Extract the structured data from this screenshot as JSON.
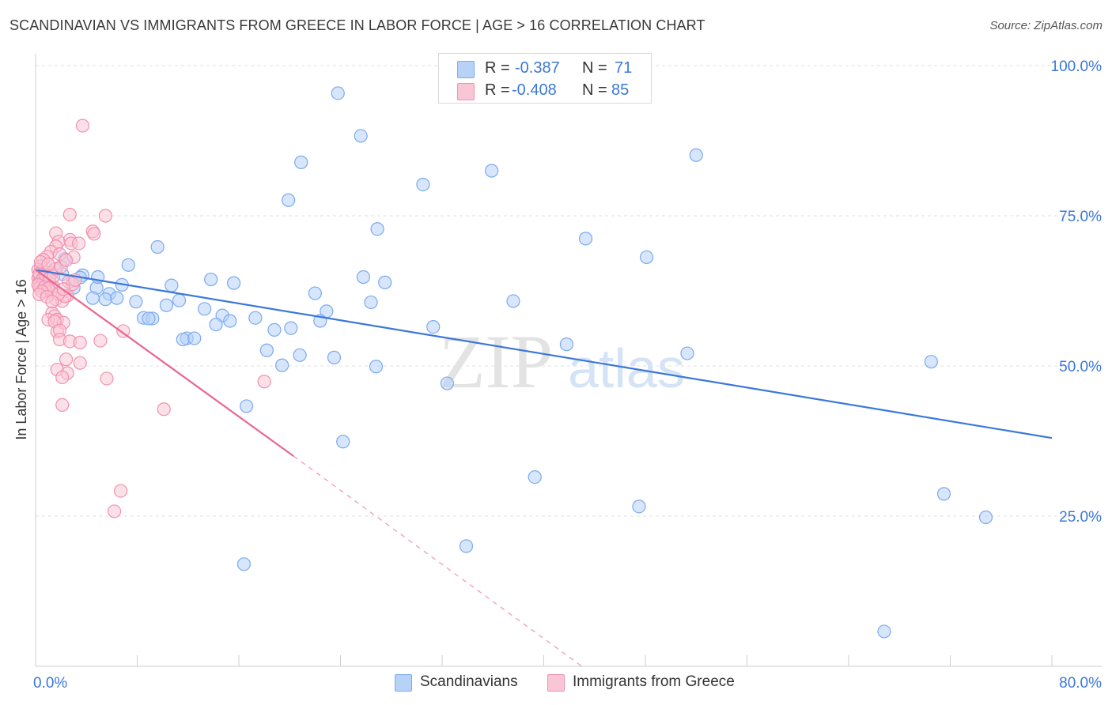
{
  "title": "SCANDINAVIAN VS IMMIGRANTS FROM GREECE IN LABOR FORCE | AGE > 16 CORRELATION CHART",
  "source": "Source: ZipAtlas.com",
  "watermark": {
    "zip": "ZIP",
    "atlas": "atlas"
  },
  "legend_top": {
    "rows": [
      {
        "r_label": "R =",
        "r_value": "-0.387",
        "n_label": "N =",
        "n_value": "71",
        "color": "#7baaf0",
        "fill": "#b7d2f7"
      },
      {
        "r_label": "R =",
        "r_value": "-0.408",
        "n_label": "N =",
        "n_value": "85",
        "color": "#f191b0",
        "fill": "#f9c6d6"
      }
    ]
  },
  "legend_bottom": [
    {
      "label": "Scandinavians",
      "fill": "#b7d2f7",
      "stroke": "#7baaf0"
    },
    {
      "label": "Immigrants from Greece",
      "fill": "#f9c6d6",
      "stroke": "#f191b0"
    }
  ],
  "chart_data": {
    "type": "scatter",
    "title": "SCANDINAVIAN VS IMMIGRANTS FROM GREECE IN LABOR FORCE | AGE > 16 CORRELATION CHART",
    "xlabel": "",
    "ylabel": "In Labor Force | Age > 16",
    "xlim": [
      0,
      80
    ],
    "ylim": [
      0,
      103
    ],
    "x_tick_labels": [
      "0.0%",
      "80.0%"
    ],
    "y_ticks": [
      25,
      50,
      75,
      100
    ],
    "y_tick_labels": [
      "25.0%",
      "50.0%",
      "75.0%",
      "100.0%"
    ],
    "grid": true,
    "legend_position": "top-center",
    "series": [
      {
        "name": "Scandinavians",
        "color": "#3b78d8",
        "fill": "#b7d2f7",
        "stroke": "#7baaf0",
        "trend": {
          "x": [
            0,
            80
          ],
          "y": [
            66.0,
            38.0
          ],
          "dashed_to": null
        },
        "points": [
          [
            23.8,
            95.4
          ],
          [
            25.6,
            88.3
          ],
          [
            52.0,
            85.1
          ],
          [
            20.9,
            83.9
          ],
          [
            30.5,
            80.2
          ],
          [
            35.9,
            82.5
          ],
          [
            19.9,
            77.6
          ],
          [
            26.9,
            72.8
          ],
          [
            43.3,
            71.2
          ],
          [
            48.1,
            68.1
          ],
          [
            9.6,
            69.8
          ],
          [
            7.3,
            66.8
          ],
          [
            1.5,
            66.1
          ],
          [
            2.3,
            67.8
          ],
          [
            3.7,
            65.1
          ],
          [
            3.5,
            64.7
          ],
          [
            13.8,
            64.4
          ],
          [
            15.6,
            63.8
          ],
          [
            25.8,
            64.8
          ],
          [
            27.5,
            63.9
          ],
          [
            10.7,
            63.4
          ],
          [
            6.8,
            63.5
          ],
          [
            4.8,
            63.0
          ],
          [
            22.0,
            62.1
          ],
          [
            5.8,
            62.0
          ],
          [
            4.5,
            61.3
          ],
          [
            5.5,
            61.1
          ],
          [
            6.4,
            61.3
          ],
          [
            7.9,
            60.7
          ],
          [
            11.3,
            60.9
          ],
          [
            26.4,
            60.6
          ],
          [
            10.3,
            60.1
          ],
          [
            37.6,
            60.8
          ],
          [
            13.3,
            59.5
          ],
          [
            22.9,
            59.1
          ],
          [
            14.7,
            58.4
          ],
          [
            8.5,
            58.0
          ],
          [
            9.2,
            57.9
          ],
          [
            8.9,
            57.9
          ],
          [
            17.3,
            58.0
          ],
          [
            15.3,
            57.5
          ],
          [
            22.4,
            57.5
          ],
          [
            14.2,
            56.9
          ],
          [
            31.3,
            56.5
          ],
          [
            20.1,
            56.3
          ],
          [
            18.8,
            56.0
          ],
          [
            11.9,
            54.6
          ],
          [
            11.6,
            54.4
          ],
          [
            12.5,
            54.6
          ],
          [
            41.8,
            53.6
          ],
          [
            18.2,
            52.6
          ],
          [
            20.8,
            51.8
          ],
          [
            51.3,
            52.1
          ],
          [
            23.5,
            51.4
          ],
          [
            19.4,
            50.1
          ],
          [
            26.8,
            49.9
          ],
          [
            70.5,
            50.7
          ],
          [
            32.4,
            47.1
          ],
          [
            16.6,
            43.3
          ],
          [
            24.2,
            37.4
          ],
          [
            39.3,
            31.5
          ],
          [
            47.5,
            26.6
          ],
          [
            71.5,
            28.7
          ],
          [
            74.8,
            24.8
          ],
          [
            33.9,
            20.0
          ],
          [
            16.4,
            17.0
          ],
          [
            66.8,
            5.8
          ],
          [
            4.9,
            64.8
          ],
          [
            3.0,
            63.0
          ],
          [
            2.1,
            65.3
          ],
          [
            1.1,
            64.0
          ]
        ]
      },
      {
        "name": "Immigrants from Greece",
        "color": "#e8678f",
        "fill": "#f9c6d6",
        "stroke": "#f191b0",
        "trend": {
          "x": [
            0,
            20.3
          ],
          "y": [
            66.0,
            35.0
          ],
          "dashed_to": [
            43.0,
            0.0
          ]
        },
        "points": [
          [
            3.7,
            90.0
          ],
          [
            2.7,
            75.2
          ],
          [
            5.5,
            75.0
          ],
          [
            4.5,
            72.4
          ],
          [
            4.6,
            72.0
          ],
          [
            1.6,
            72.1
          ],
          [
            2.7,
            71.0
          ],
          [
            1.8,
            70.7
          ],
          [
            2.8,
            70.4
          ],
          [
            3.4,
            70.4
          ],
          [
            1.6,
            69.9
          ],
          [
            1.2,
            69.0
          ],
          [
            1.9,
            68.6
          ],
          [
            0.9,
            68.2
          ],
          [
            3.0,
            68.1
          ],
          [
            0.6,
            67.7
          ],
          [
            0.4,
            66.6
          ],
          [
            0.2,
            66.0
          ],
          [
            0.5,
            65.8
          ],
          [
            0.9,
            65.6
          ],
          [
            1.3,
            65.5
          ],
          [
            0.3,
            65.0
          ],
          [
            0.7,
            64.9
          ],
          [
            0.2,
            64.6
          ],
          [
            0.6,
            64.3
          ],
          [
            0.9,
            64.2
          ],
          [
            0.3,
            64.0
          ],
          [
            0.5,
            63.8
          ],
          [
            1.2,
            63.6
          ],
          [
            0.8,
            63.6
          ],
          [
            0.4,
            63.3
          ],
          [
            0.3,
            63.0
          ],
          [
            1.4,
            63.2
          ],
          [
            2.6,
            64.0
          ],
          [
            2.9,
            63.6
          ],
          [
            3.1,
            64.3
          ],
          [
            0.8,
            62.6
          ],
          [
            1.2,
            62.3
          ],
          [
            2.5,
            61.7
          ],
          [
            1.6,
            61.1
          ],
          [
            2.1,
            60.8
          ],
          [
            2.3,
            61.6
          ],
          [
            1.3,
            58.8
          ],
          [
            1.5,
            58.3
          ],
          [
            1.0,
            57.7
          ],
          [
            1.7,
            57.7
          ],
          [
            2.2,
            57.2
          ],
          [
            1.5,
            57.4
          ],
          [
            1.7,
            55.7
          ],
          [
            1.9,
            55.9
          ],
          [
            6.9,
            55.8
          ],
          [
            1.9,
            54.4
          ],
          [
            2.7,
            54.1
          ],
          [
            5.1,
            54.2
          ],
          [
            3.5,
            53.9
          ],
          [
            2.4,
            51.1
          ],
          [
            3.5,
            50.5
          ],
          [
            1.7,
            49.4
          ],
          [
            2.5,
            48.8
          ],
          [
            2.1,
            48.1
          ],
          [
            5.6,
            47.9
          ],
          [
            18.0,
            47.4
          ],
          [
            2.1,
            43.5
          ],
          [
            10.1,
            42.8
          ],
          [
            6.7,
            29.2
          ],
          [
            6.2,
            25.8
          ],
          [
            0.3,
            65.4
          ],
          [
            0.6,
            64.6
          ],
          [
            0.8,
            65.1
          ],
          [
            1.1,
            64.6
          ],
          [
            1.4,
            64.9
          ],
          [
            0.2,
            63.5
          ],
          [
            0.7,
            63.1
          ],
          [
            1.0,
            62.9
          ],
          [
            0.5,
            62.4
          ],
          [
            0.3,
            61.9
          ],
          [
            1.8,
            62.0
          ],
          [
            2.2,
            62.8
          ],
          [
            0.9,
            61.5
          ],
          [
            1.3,
            60.7
          ],
          [
            1.6,
            66.2
          ],
          [
            2.0,
            66.5
          ],
          [
            0.4,
            67.3
          ],
          [
            1.0,
            66.9
          ],
          [
            2.4,
            67.6
          ]
        ]
      }
    ]
  }
}
